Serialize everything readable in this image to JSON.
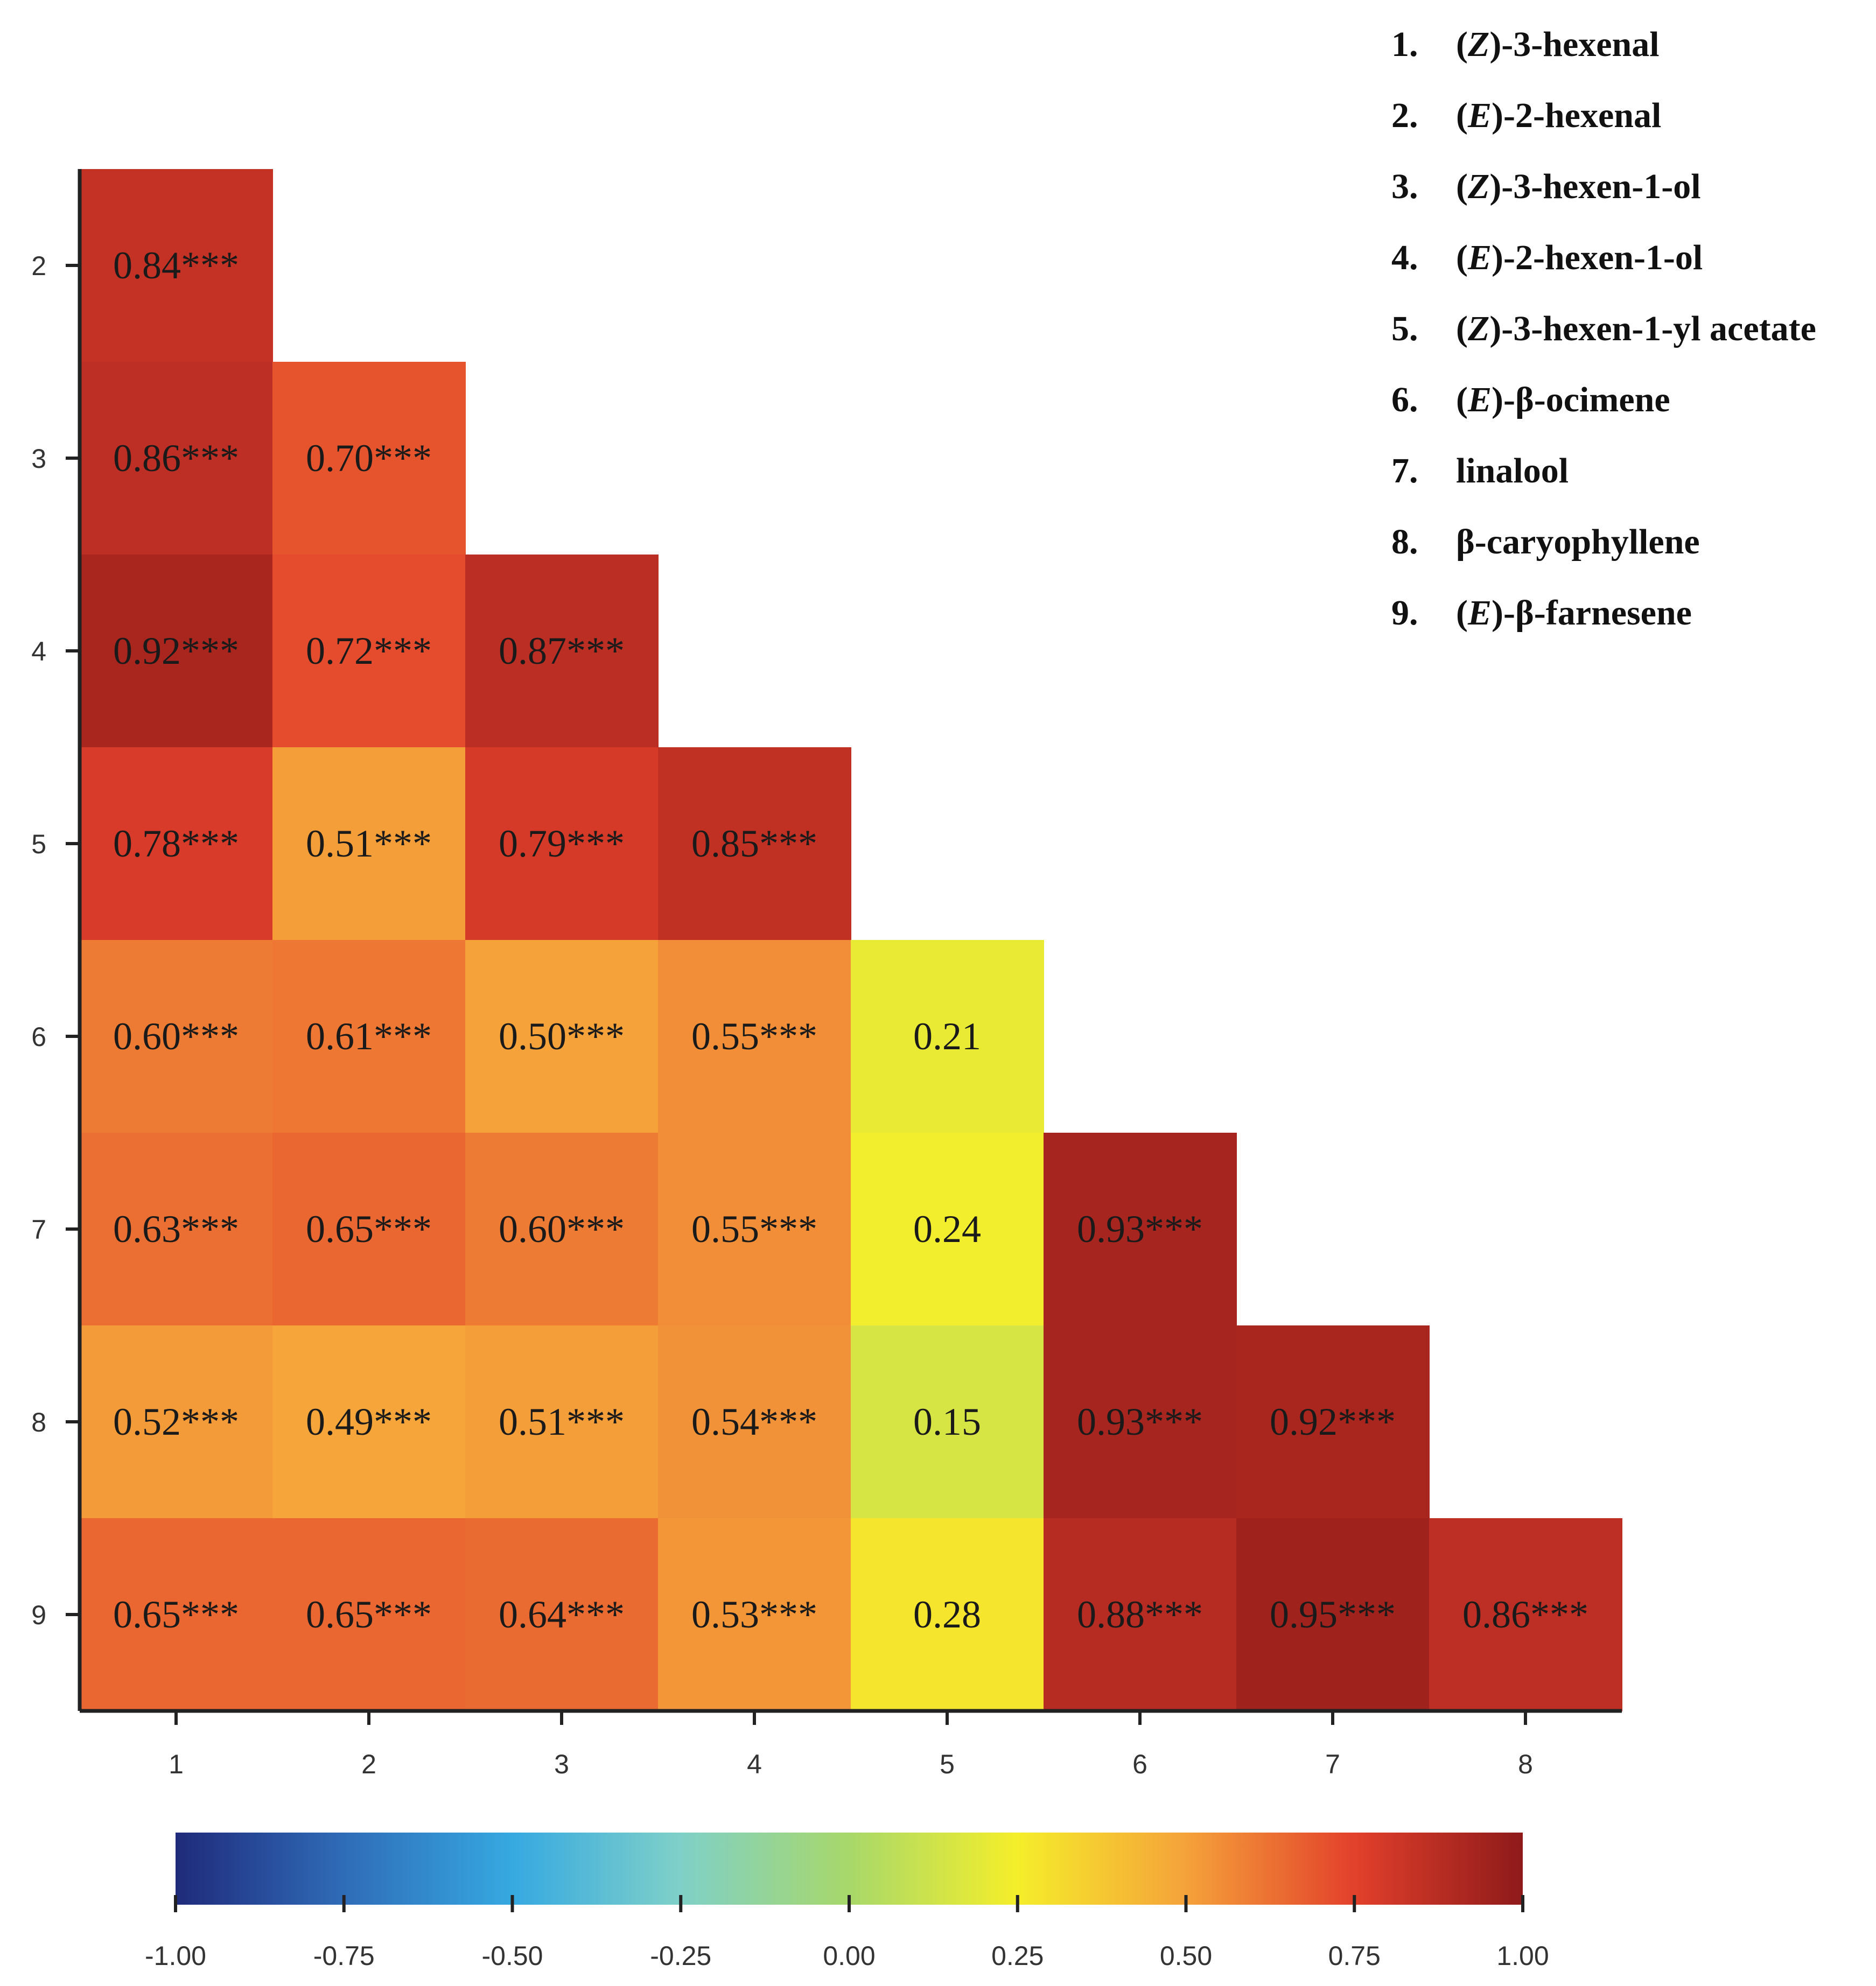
{
  "chart_data": {
    "type": "heatmap",
    "title": "",
    "xlabel": "",
    "ylabel": "",
    "x_categories": [
      "1",
      "2",
      "3",
      "4",
      "5",
      "6",
      "7",
      "8"
    ],
    "y_categories": [
      "2",
      "3",
      "4",
      "5",
      "6",
      "7",
      "8",
      "9"
    ],
    "cells": [
      {
        "row": "2",
        "col": "1",
        "value": 0.84,
        "label": "0.84***"
      },
      {
        "row": "3",
        "col": "1",
        "value": 0.86,
        "label": "0.86***"
      },
      {
        "row": "3",
        "col": "2",
        "value": 0.7,
        "label": "0.70***"
      },
      {
        "row": "4",
        "col": "1",
        "value": 0.92,
        "label": "0.92***"
      },
      {
        "row": "4",
        "col": "2",
        "value": 0.72,
        "label": "0.72***"
      },
      {
        "row": "4",
        "col": "3",
        "value": 0.87,
        "label": "0.87***"
      },
      {
        "row": "5",
        "col": "1",
        "value": 0.78,
        "label": "0.78***"
      },
      {
        "row": "5",
        "col": "2",
        "value": 0.51,
        "label": "0.51***"
      },
      {
        "row": "5",
        "col": "3",
        "value": 0.79,
        "label": "0.79***"
      },
      {
        "row": "5",
        "col": "4",
        "value": 0.85,
        "label": "0.85***"
      },
      {
        "row": "6",
        "col": "1",
        "value": 0.6,
        "label": "0.60***"
      },
      {
        "row": "6",
        "col": "2",
        "value": 0.61,
        "label": "0.61***"
      },
      {
        "row": "6",
        "col": "3",
        "value": 0.5,
        "label": "0.50***"
      },
      {
        "row": "6",
        "col": "4",
        "value": 0.55,
        "label": "0.55***"
      },
      {
        "row": "6",
        "col": "5",
        "value": 0.21,
        "label": "0.21"
      },
      {
        "row": "7",
        "col": "1",
        "value": 0.63,
        "label": "0.63***"
      },
      {
        "row": "7",
        "col": "2",
        "value": 0.65,
        "label": "0.65***"
      },
      {
        "row": "7",
        "col": "3",
        "value": 0.6,
        "label": "0.60***"
      },
      {
        "row": "7",
        "col": "4",
        "value": 0.55,
        "label": "0.55***"
      },
      {
        "row": "7",
        "col": "5",
        "value": 0.24,
        "label": "0.24"
      },
      {
        "row": "7",
        "col": "6",
        "value": 0.93,
        "label": "0.93***"
      },
      {
        "row": "8",
        "col": "1",
        "value": 0.52,
        "label": "0.52***"
      },
      {
        "row": "8",
        "col": "2",
        "value": 0.49,
        "label": "0.49***"
      },
      {
        "row": "8",
        "col": "3",
        "value": 0.51,
        "label": "0.51***"
      },
      {
        "row": "8",
        "col": "4",
        "value": 0.54,
        "label": "0.54***"
      },
      {
        "row": "8",
        "col": "5",
        "value": 0.15,
        "label": "0.15"
      },
      {
        "row": "8",
        "col": "6",
        "value": 0.93,
        "label": "0.93***"
      },
      {
        "row": "8",
        "col": "7",
        "value": 0.92,
        "label": "0.92***"
      },
      {
        "row": "9",
        "col": "1",
        "value": 0.65,
        "label": "0.65***"
      },
      {
        "row": "9",
        "col": "2",
        "value": 0.65,
        "label": "0.65***"
      },
      {
        "row": "9",
        "col": "3",
        "value": 0.64,
        "label": "0.64***"
      },
      {
        "row": "9",
        "col": "4",
        "value": 0.53,
        "label": "0.53***"
      },
      {
        "row": "9",
        "col": "5",
        "value": 0.28,
        "label": "0.28"
      },
      {
        "row": "9",
        "col": "6",
        "value": 0.88,
        "label": "0.88***"
      },
      {
        "row": "9",
        "col": "7",
        "value": 0.95,
        "label": "0.95***"
      },
      {
        "row": "9",
        "col": "8",
        "value": 0.86,
        "label": "0.86***"
      }
    ],
    "colorbar": {
      "range": [
        -1.0,
        1.0
      ],
      "ticks": [
        "-1.00",
        "-0.75",
        "-0.50",
        "-0.25",
        "0.00",
        "0.25",
        "0.50",
        "0.75",
        "1.00"
      ],
      "colors": [
        "#1f2a7a",
        "#2f6cb8",
        "#36a9e1",
        "#7fd0c8",
        "#a8d86a",
        "#f5ee2a",
        "#f5a23a",
        "#e2402b",
        "#8e1a1a"
      ]
    },
    "legend": [
      {
        "num": "1.",
        "pre": "(",
        "italic": "Z",
        "post": ")-3-hexenal"
      },
      {
        "num": "2.",
        "pre": "(",
        "italic": "E",
        "post": ")-2-hexenal"
      },
      {
        "num": "3.",
        "pre": "(",
        "italic": "Z",
        "post": ")-3-hexen-1-ol"
      },
      {
        "num": "4.",
        "pre": "(",
        "italic": "E",
        "post": ")-2-hexen-1-ol"
      },
      {
        "num": "5.",
        "pre": "(",
        "italic": "Z",
        "post": ")-3-hexen-1-yl acetate"
      },
      {
        "num": "6.",
        "pre": "(",
        "italic": "E",
        "post": ")-β-ocimene"
      },
      {
        "num": "7.",
        "pre": "",
        "italic": "",
        "post": "linalool"
      },
      {
        "num": "8.",
        "pre": "",
        "italic": "",
        "post": "β-caryophyllene"
      },
      {
        "num": "9.",
        "pre": "(",
        "italic": "E",
        "post": ")-β-farnesene"
      }
    ]
  }
}
